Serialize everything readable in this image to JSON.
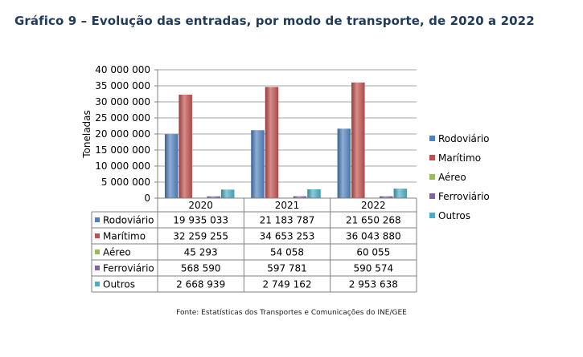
{
  "title": "Gráfico 9 – Evolução das entradas, por modo de transporte, de 2020 a 2022",
  "source": "Fonte: Estatísticas dos Transportes e Comunicações do INE/GEE",
  "chart_data": {
    "type": "bar",
    "title": "Gráfico 9 – Evolução das entradas, por modo de transporte, de 2020 a 2022",
    "xlabel": "",
    "ylabel": "Toneladas",
    "ylim": [
      0,
      40000000
    ],
    "yticks": [
      0,
      5000000,
      10000000,
      15000000,
      20000000,
      25000000,
      30000000,
      35000000,
      40000000
    ],
    "ytick_labels": [
      "0",
      "5 000 000",
      "10 000 000",
      "15 000 000",
      "20 000 000",
      "25 000 000",
      "30 000 000",
      "35 000 000",
      "40 000 000"
    ],
    "grid": true,
    "legend_position": "right",
    "categories": [
      "2020",
      "2021",
      "2022"
    ],
    "series": [
      {
        "name": "Rodoviário",
        "color": "#4f81bd",
        "values": [
          19935033,
          21183787,
          21650268
        ],
        "labels": [
          "19 935 033",
          "21 183 787",
          "21 650 268"
        ]
      },
      {
        "name": "Marítimo",
        "color": "#c0504d",
        "values": [
          32259255,
          34653253,
          36043880
        ],
        "labels": [
          "32 259 255",
          "34 653 253",
          "36 043 880"
        ]
      },
      {
        "name": "Aéreo",
        "color": "#9bbb59",
        "values": [
          45293,
          54058,
          60055
        ],
        "labels": [
          "45 293",
          "54 058",
          "60 055"
        ]
      },
      {
        "name": "Ferroviário",
        "color": "#8064a2",
        "values": [
          568590,
          597781,
          590574
        ],
        "labels": [
          "568 590",
          "597 781",
          "590 574"
        ]
      },
      {
        "name": "Outros",
        "color": "#4bacc6",
        "values": [
          2668939,
          2749162,
          2953638
        ],
        "labels": [
          "2 668 939",
          "2 749 162",
          "2 953 638"
        ]
      }
    ]
  }
}
